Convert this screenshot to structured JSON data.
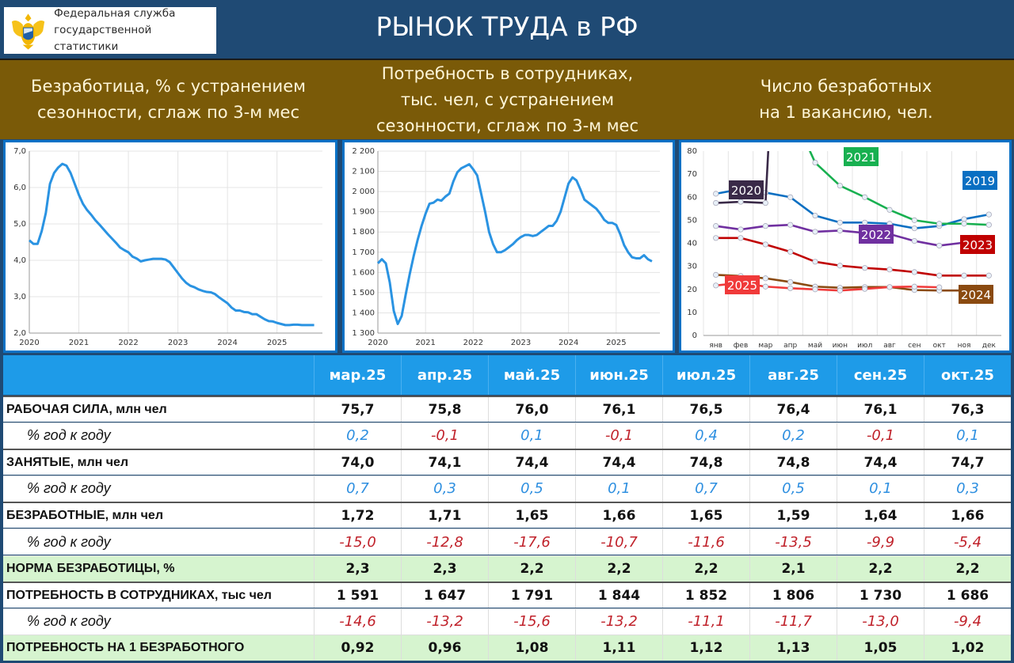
{
  "header": {
    "org_line1": "Федеральная служба",
    "org_line2": "государственной статистики",
    "title": "РЫНОК ТРУДА в РФ"
  },
  "sections": [
    {
      "l1": "Безработица, % с устранением",
      "l2": "сезонности, сглаж по 3-м мес",
      "l3": ""
    },
    {
      "l1": "Потребность в сотрудниках,",
      "l2": "тыс. чел, с устранением",
      "l3": "сезонности, сглаж по 3-м мес"
    },
    {
      "l1": "Число безработных",
      "l2": "на 1 вакансию, чел.",
      "l3": ""
    }
  ],
  "colors": {
    "line": "#2a93e2",
    "positive": "#2e8fe0",
    "negative": "#c0222b",
    "header_blue": "#1e9be8",
    "band": "#7a5a08"
  },
  "chart_data": [
    {
      "type": "line",
      "title": "Безработица, % с устранением сезонности, сглаж по 3-м мес",
      "ylim": [
        2,
        7
      ],
      "yticks": [
        "2,0",
        "3,0",
        "4,0",
        "5,0",
        "6,0",
        "7,0"
      ],
      "xticks": [
        "2020",
        "2021",
        "2022",
        "2023",
        "2024",
        "2025"
      ],
      "start": "2020-01",
      "frequency": "monthly",
      "values": [
        4.55,
        4.45,
        4.45,
        4.8,
        5.3,
        6.1,
        6.4,
        6.55,
        6.65,
        6.6,
        6.4,
        6.1,
        5.8,
        5.55,
        5.38,
        5.25,
        5.1,
        4.98,
        4.85,
        4.72,
        4.6,
        4.48,
        4.35,
        4.28,
        4.22,
        4.1,
        4.05,
        3.97,
        4.0,
        4.02,
        4.04,
        4.04,
        4.04,
        4.02,
        3.95,
        3.8,
        3.65,
        3.5,
        3.38,
        3.3,
        3.26,
        3.2,
        3.16,
        3.13,
        3.12,
        3.07,
        2.98,
        2.9,
        2.82,
        2.7,
        2.62,
        2.62,
        2.58,
        2.57,
        2.52,
        2.52,
        2.45,
        2.38,
        2.33,
        2.32,
        2.28,
        2.25,
        2.22,
        2.22,
        2.23,
        2.23,
        2.22,
        2.22,
        2.22,
        2.22
      ]
    },
    {
      "type": "line",
      "title": "Потребность в сотрудниках, тыс. чел",
      "ylim": [
        1300,
        2200
      ],
      "yticks": [
        "1 300",
        "1 400",
        "1 500",
        "1 600",
        "1 700",
        "1 800",
        "1 900",
        "2 000",
        "2 100",
        "2 200"
      ],
      "xticks": [
        "2020",
        "2021",
        "2022",
        "2023",
        "2024",
        "2025"
      ],
      "start": "2020-01",
      "frequency": "monthly",
      "values": [
        1645,
        1665,
        1645,
        1550,
        1410,
        1345,
        1385,
        1490,
        1590,
        1680,
        1760,
        1830,
        1890,
        1940,
        1945,
        1960,
        1955,
        1975,
        1990,
        2050,
        2095,
        2115,
        2125,
        2135,
        2110,
        2080,
        1990,
        1900,
        1800,
        1740,
        1700,
        1700,
        1710,
        1725,
        1740,
        1760,
        1775,
        1785,
        1785,
        1780,
        1785,
        1800,
        1815,
        1830,
        1830,
        1855,
        1900,
        1970,
        2040,
        2070,
        2055,
        2010,
        1960,
        1945,
        1930,
        1915,
        1890,
        1860,
        1845,
        1845,
        1835,
        1790,
        1735,
        1700,
        1675,
        1670,
        1670,
        1685,
        1665,
        1655
      ]
    },
    {
      "type": "line",
      "title": "Число безработных на 1 вакансию, чел.",
      "ylim": [
        0,
        80
      ],
      "yticks": [
        "0",
        "10",
        "20",
        "30",
        "40",
        "50",
        "60",
        "70",
        "80"
      ],
      "categories": [
        "янв",
        "фев",
        "мар",
        "апр",
        "май",
        "июн",
        "июл",
        "авг",
        "сен",
        "окт",
        "ноя",
        "дек"
      ],
      "series": [
        {
          "name": "2019",
          "color": "#0a6fc2",
          "values": [
            61.5,
            63.5,
            62,
            60,
            52,
            49,
            49,
            48.5,
            46.5,
            47.5,
            50.5,
            52.5
          ]
        },
        {
          "name": "2020",
          "color": "#3a2a48",
          "values": [
            57.5,
            58,
            57.5,
            null,
            null,
            null,
            null,
            null,
            null,
            null,
            null,
            null
          ],
          "off_scale_after": "мар"
        },
        {
          "name": "2021",
          "color": "#18b050",
          "values": [
            null,
            null,
            null,
            null,
            75,
            65,
            60,
            54.5,
            50,
            48.5,
            48.5,
            48
          ],
          "off_scale_before": "май"
        },
        {
          "name": "2022",
          "color": "#7030a0",
          "values": [
            47.5,
            46,
            47.5,
            48,
            45,
            45.5,
            44.5,
            44,
            41,
            39,
            40.3,
            40.3
          ]
        },
        {
          "name": "2023",
          "color": "#c00000",
          "values": [
            42.3,
            42.3,
            39.5,
            36.3,
            32,
            30.3,
            29.3,
            28.6,
            27.5,
            26,
            26,
            26
          ]
        },
        {
          "name": "2024",
          "color": "#8a4a10",
          "values": [
            26.3,
            25.8,
            24.8,
            23.2,
            21.2,
            20.7,
            21,
            21,
            19.7,
            19.5,
            19.5,
            19.8
          ]
        },
        {
          "name": "2025",
          "color": "#f03a3a",
          "values": [
            21.7,
            22.8,
            21.2,
            20.5,
            20,
            19.5,
            20.2,
            21,
            21.2,
            20.9,
            null,
            null
          ]
        }
      ]
    }
  ],
  "table": {
    "columns": [
      "мар.25",
      "апр.25",
      "май.25",
      "июн.25",
      "июл.25",
      "авг.25",
      "сен.25",
      "окт.25"
    ],
    "rows": [
      {
        "label": "РАБОЧАЯ СИЛА, млн чел",
        "kind": "main",
        "values": [
          "75,7",
          "75,8",
          "76,0",
          "76,1",
          "76,5",
          "76,4",
          "76,1",
          "76,3"
        ]
      },
      {
        "label": "% год к году",
        "kind": "pct",
        "values": [
          "0,2",
          "-0,1",
          "0,1",
          "-0,1",
          "0,4",
          "0,2",
          "-0,1",
          "0,1"
        ]
      },
      {
        "label": "ЗАНЯТЫЕ, млн чел",
        "kind": "main",
        "values": [
          "74,0",
          "74,1",
          "74,4",
          "74,4",
          "74,8",
          "74,8",
          "74,4",
          "74,7"
        ]
      },
      {
        "label": "% год к году",
        "kind": "pct",
        "values": [
          "0,7",
          "0,3",
          "0,5",
          "0,1",
          "0,7",
          "0,5",
          "0,1",
          "0,3"
        ]
      },
      {
        "label": "БЕЗРАБОТНЫЕ, млн чел",
        "kind": "main",
        "values": [
          "1,72",
          "1,71",
          "1,65",
          "1,66",
          "1,65",
          "1,59",
          "1,64",
          "1,66"
        ]
      },
      {
        "label": "% год к году",
        "kind": "pct",
        "values": [
          "-15,0",
          "-12,8",
          "-17,6",
          "-10,7",
          "-11,6",
          "-13,5",
          "-9,9",
          "-5,4"
        ]
      },
      {
        "label": "НОРМА БЕЗРАБОТИЦЫ, %",
        "kind": "green",
        "values": [
          "2,3",
          "2,3",
          "2,2",
          "2,2",
          "2,2",
          "2,1",
          "2,2",
          "2,2"
        ]
      },
      {
        "label": "ПОТРЕБНОСТЬ В СОТРУДНИКАХ, тыс чел",
        "kind": "main",
        "values": [
          "1 591",
          "1 647",
          "1 791",
          "1 844",
          "1 852",
          "1 806",
          "1 730",
          "1 686"
        ]
      },
      {
        "label": "% год к году",
        "kind": "pct",
        "values": [
          "-14,6",
          "-13,2",
          "-15,6",
          "-13,2",
          "-11,1",
          "-11,7",
          "-13,0",
          "-9,4"
        ]
      },
      {
        "label": "ПОТРЕБНОСТЬ НА 1 БЕЗРАБОТНОГО",
        "kind": "green",
        "values": [
          "0,92",
          "0,96",
          "1,08",
          "1,11",
          "1,12",
          "1,13",
          "1,05",
          "1,02"
        ]
      }
    ]
  }
}
